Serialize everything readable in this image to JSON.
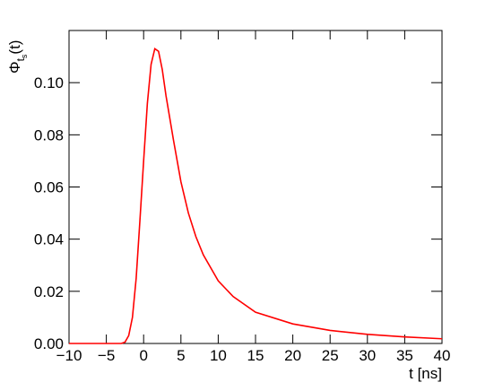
{
  "chart_data": {
    "type": "line",
    "xlabel": "t [ns]",
    "ylabel": [
      "Φ",
      "t",
      "s",
      "(t)"
    ],
    "x": [
      -10,
      -3,
      -2.5,
      -2,
      -1.5,
      -1,
      -0.5,
      0,
      0.5,
      1,
      1.5,
      2,
      2.5,
      3,
      4,
      5,
      6,
      7,
      8,
      10,
      12,
      15,
      20,
      25,
      30,
      35,
      40
    ],
    "series": [
      {
        "color": "#ff0000",
        "values": [
          0,
          0,
          0.0005,
          0.003,
          0.01,
          0.025,
          0.047,
          0.07,
          0.092,
          0.107,
          0.113,
          0.112,
          0.105,
          0.095,
          0.078,
          0.062,
          0.05,
          0.041,
          0.034,
          0.024,
          0.018,
          0.012,
          0.0075,
          0.005,
          0.0035,
          0.0025,
          0.0018
        ]
      }
    ],
    "xlim": [
      -10,
      40
    ],
    "ylim": [
      0,
      0.12
    ],
    "xticks": [
      {
        "value": -10,
        "label": "−10"
      },
      {
        "value": -5,
        "label": "−5"
      },
      0,
      5,
      10,
      15,
      20,
      25,
      30,
      35,
      40
    ],
    "yticks": [
      {
        "value": 0,
        "label": "0.00"
      },
      {
        "value": 0.02,
        "label": "0.02"
      },
      {
        "value": 0.04,
        "label": "0.04"
      },
      {
        "value": 0.06,
        "label": "0.06"
      },
      {
        "value": 0.08,
        "label": "0.08"
      },
      {
        "value": 0.1,
        "label": "0.10"
      }
    ],
    "grid": false
  }
}
